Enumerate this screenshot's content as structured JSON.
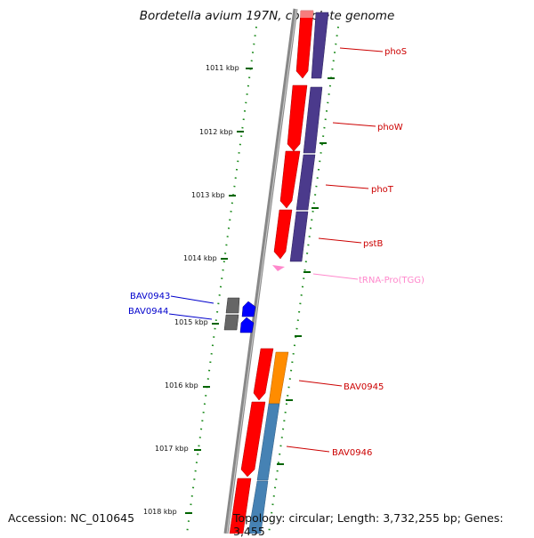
{
  "title": "Bordetella avium 197N, complete genome",
  "footer": {
    "accession": "Accession: NC_010645",
    "summary": "Topology: circular; Length: 3,732,255 bp; Genes: 3,455"
  },
  "colors": {
    "forward_gene": "#ff0000",
    "pho_operon_partner": "#4b3a8c",
    "orange_partner": "#ff8c00",
    "steel_partner": "#4682b4",
    "gray_block": "#666666",
    "blue_gene": "#0000ff",
    "trna": "#ff88cc",
    "tick": "#006400",
    "label_red": "#cc0000",
    "label_blue": "#0000cc",
    "label_pink": "#ff88cc"
  },
  "ticks": [
    {
      "label": "1011 kbp"
    },
    {
      "label": "1012 kbp"
    },
    {
      "label": "1013 kbp"
    },
    {
      "label": "1014 kbp"
    },
    {
      "label": "1015 kbp"
    },
    {
      "label": "1016 kbp"
    },
    {
      "label": "1017 kbp"
    },
    {
      "label": "1018 kbp"
    }
  ],
  "gene_labels": [
    {
      "name": "phoS",
      "color": "#cc0000"
    },
    {
      "name": "phoW",
      "color": "#cc0000"
    },
    {
      "name": "phoT",
      "color": "#cc0000"
    },
    {
      "name": "pstB",
      "color": "#cc0000"
    },
    {
      "name": "tRNA-Pro(TGG)",
      "color": "#ff88cc"
    },
    {
      "name": "BAV0943",
      "color": "#0000cc"
    },
    {
      "name": "BAV0944",
      "color": "#0000cc"
    },
    {
      "name": "BAV0945",
      "color": "#cc0000"
    },
    {
      "name": "BAV0946",
      "color": "#cc0000"
    }
  ]
}
